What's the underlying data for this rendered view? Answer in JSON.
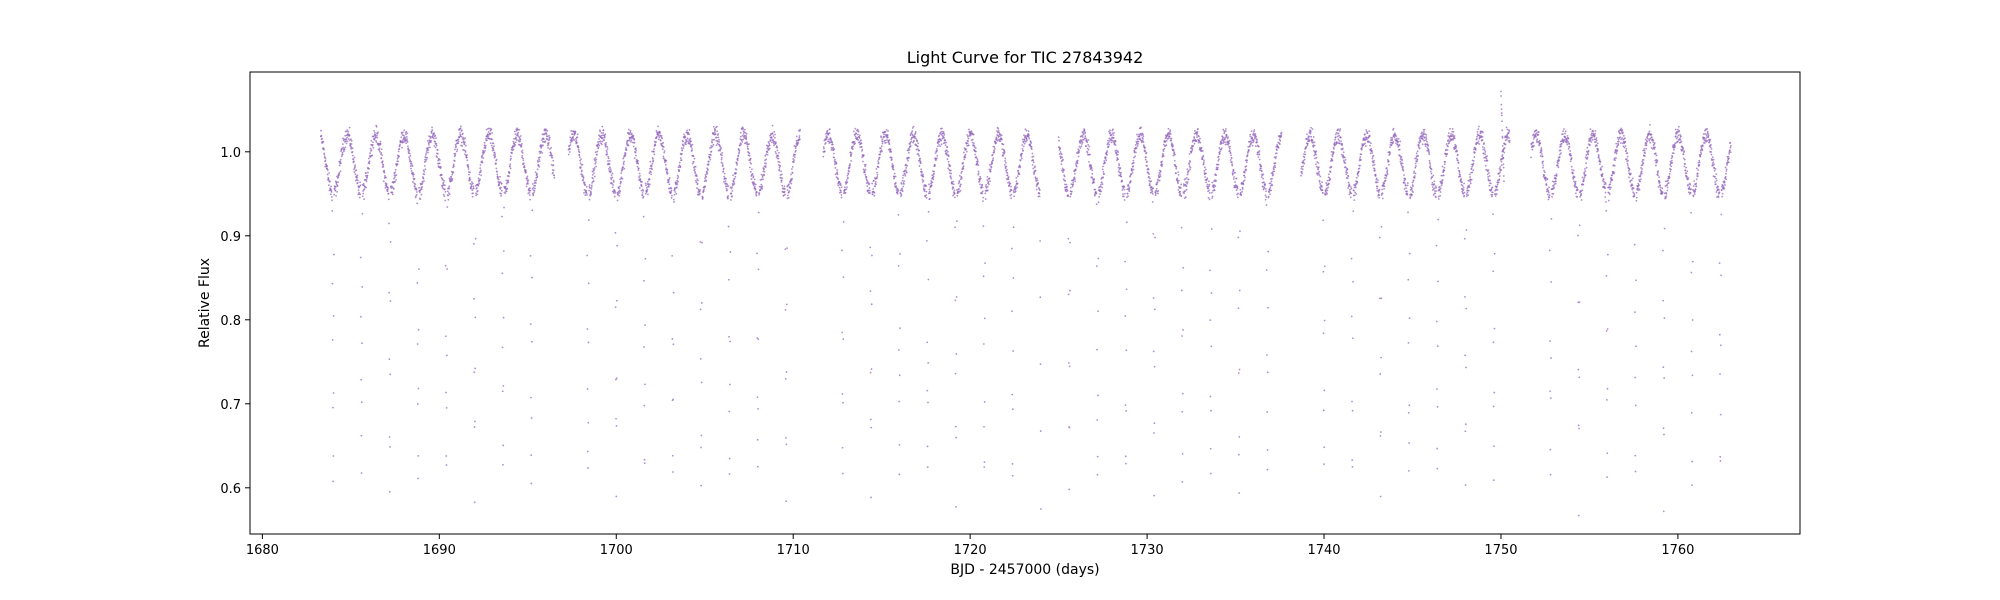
{
  "chart_data": {
    "type": "scatter",
    "title": "Light Curve for TIC 27843942",
    "xlabel": "BJD - 2457000 (days)",
    "ylabel": "Relative Flux",
    "xlim": [
      1679.3,
      1766.9
    ],
    "ylim": [
      0.545,
      1.095
    ],
    "x_ticks": [
      1680,
      1690,
      1700,
      1710,
      1720,
      1730,
      1740,
      1750,
      1760
    ],
    "x_tick_labels": [
      "1680",
      "1690",
      "1700",
      "1710",
      "1720",
      "1730",
      "1740",
      "1750",
      "1760"
    ],
    "y_ticks": [
      0.6,
      0.7,
      0.8,
      0.9,
      1.0
    ],
    "y_tick_labels": [
      "0.6",
      "0.7",
      "0.8",
      "0.9",
      "1.0"
    ],
    "grid": false,
    "legend": "none",
    "marker_color": "#9467bd",
    "series": [
      {
        "segments": [
          [
            1683.3,
            1696.5
          ],
          [
            1697.3,
            1710.4
          ],
          [
            1711.7,
            1724.0
          ],
          [
            1725.0,
            1737.6
          ],
          [
            1738.7,
            1750.5
          ],
          [
            1751.7,
            1763.0
          ]
        ],
        "period_days": 1.6,
        "first_minimum": 1684.0,
        "out_of_eclipse_flux": 1.02,
        "modulation_minimum_flux": 0.95,
        "eclipse_depth_flux": 0.59,
        "outlier_peak": [
          1750.0,
          1.07
        ]
      }
    ]
  }
}
